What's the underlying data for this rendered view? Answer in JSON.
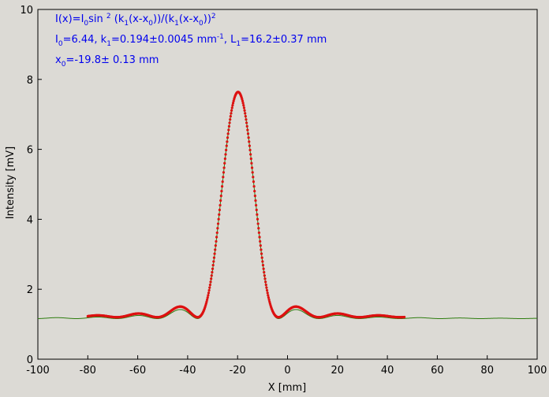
{
  "chart_data": {
    "type": "scatter",
    "xlabel": "X [mm]",
    "ylabel": "Intensity [mV]",
    "xlim": [
      -100,
      100
    ],
    "ylim": [
      0,
      10
    ],
    "x_ticks": [
      "-100",
      "-80",
      "-60",
      "-40",
      "-20",
      "0",
      "20",
      "40",
      "60",
      "80",
      "100"
    ],
    "y_ticks": [
      "0",
      "2",
      "4",
      "6",
      "8",
      "10"
    ],
    "annotations": {
      "formula": {
        "a": "I(x)=I",
        "b": "0",
        "c": "sin ",
        "d": "2",
        "e": " (k",
        "f": "1",
        "g": "(x-x",
        "h": "0",
        "i": "))/(k",
        "j": "1",
        "k": "(x-x",
        "l": "0",
        "m": "))",
        "n": "2"
      },
      "params": {
        "a": "I",
        "b": "0",
        "c": "=6.44,  k",
        "d": "1",
        "e": "=0.194±0.0045 mm",
        "f": "-1",
        "g": ",  L",
        "h": "1",
        "i": "=16.2±0.37 mm"
      },
      "offset": {
        "a": "x",
        "b": "0",
        "c": "=-19.8±   0.13 mm"
      }
    },
    "fit_params": {
      "I0": 6.44,
      "k1": 0.194,
      "x0": -19.8,
      "background": 1.2
    },
    "series": [
      {
        "color": "#2e7d0f",
        "x_range": [
          -100,
          100
        ],
        "baseline": 1.16,
        "peak": 7.65
      },
      {
        "color": "#dd1111",
        "x_range": [
          -80,
          47
        ],
        "peak": 7.65
      }
    ]
  }
}
